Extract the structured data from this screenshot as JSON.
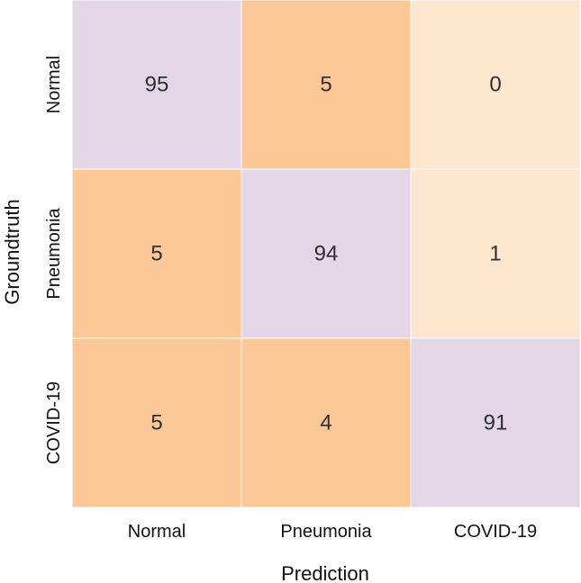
{
  "chart_data": {
    "type": "heatmap",
    "title": "",
    "xlabel": "Prediction",
    "ylabel": "Groundtruth",
    "x_categories": [
      "Normal",
      "Pneumonia",
      "COVID-19"
    ],
    "y_categories": [
      "Normal",
      "Pneumonia",
      "COVID-19"
    ],
    "values": [
      [
        95,
        5,
        0
      ],
      [
        5,
        94,
        1
      ],
      [
        5,
        4,
        91
      ]
    ],
    "colors": {
      "diagonal": "#e2d6e7",
      "high_offdiag": "#fdc898",
      "low_offdiag": "#fee6cf"
    }
  }
}
